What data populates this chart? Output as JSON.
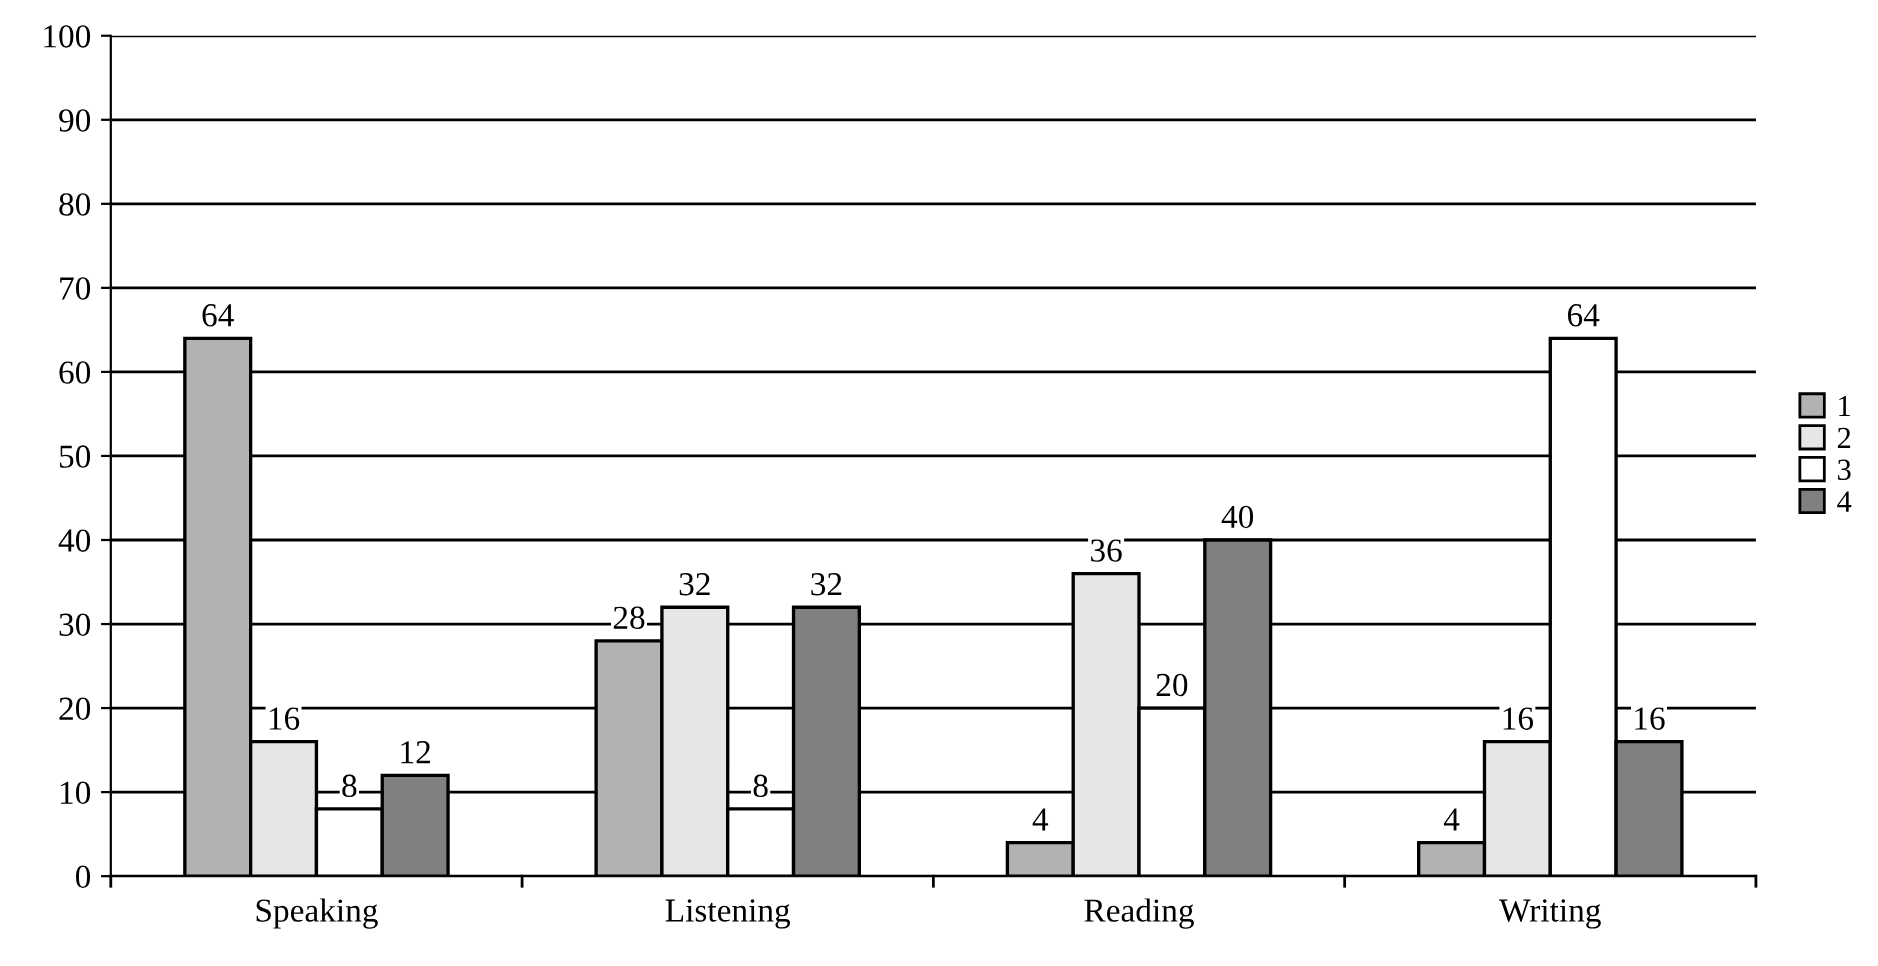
{
  "chart_data": {
    "type": "bar",
    "categories": [
      "Speaking",
      "Listening",
      "Reading",
      "Writing"
    ],
    "series": [
      {
        "name": "1",
        "color": "#b2b2b2",
        "values": [
          64,
          28,
          4,
          4
        ]
      },
      {
        "name": "2",
        "color": "#e6e6e6",
        "values": [
          16,
          32,
          36,
          16
        ]
      },
      {
        "name": "3",
        "color": "#ffffff",
        "values": [
          8,
          8,
          20,
          64
        ]
      },
      {
        "name": "4",
        "color": "#808080",
        "values": [
          12,
          32,
          40,
          16
        ]
      }
    ],
    "ylim": [
      0,
      100
    ],
    "yticks": [
      0,
      10,
      20,
      30,
      40,
      50,
      60,
      70,
      80,
      90,
      100
    ],
    "grid": "y",
    "legend": "right",
    "data_labels": true
  }
}
